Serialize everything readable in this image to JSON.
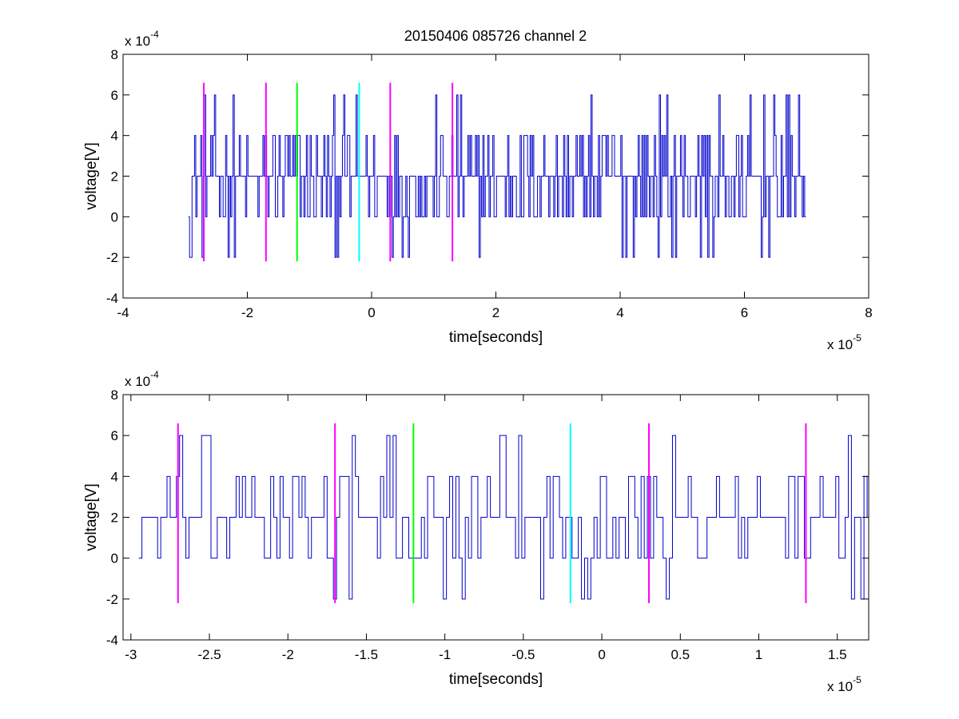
{
  "title": "20150406 085726 channel 2",
  "colors": {
    "signal": "#0000cc",
    "marker_magenta": "#ff00ff",
    "marker_green": "#00ff00",
    "marker_cyan": "#00ffff",
    "axes": "#000000",
    "background": "#ffffff"
  },
  "chart_data": [
    {
      "type": "line",
      "xlabel": "time[seconds]",
      "ylabel": "voltage[V]",
      "x_exponent_base": "x 10",
      "x_exponent": "-5",
      "y_exponent_base": "x 10",
      "y_exponent": "-4",
      "xlim": [
        -4,
        8
      ],
      "ylim": [
        -4,
        8
      ],
      "x_unit_scale": 1e-05,
      "y_unit_scale": 0.0001,
      "xticks": [
        -4,
        -2,
        0,
        2,
        4,
        6,
        8
      ],
      "xtick_labels": [
        "-4",
        "-2",
        "0",
        "2",
        "4",
        "6",
        "8"
      ],
      "yticks": [
        -4,
        -2,
        0,
        2,
        4,
        6,
        8
      ],
      "ytick_labels": [
        "-4",
        "-2",
        "0",
        "2",
        "4",
        "6",
        "8"
      ],
      "grid": false,
      "signal": {
        "x_start": -2.95,
        "x_end": 7.0,
        "dt": 0.02,
        "baseline": 2,
        "levels": [
          -2,
          0,
          2,
          4,
          6
        ]
      },
      "markers": [
        {
          "x": -2.7,
          "color": "magenta",
          "y_range": [
            -2.2,
            6.6
          ]
        },
        {
          "x": -1.7,
          "color": "magenta",
          "y_range": [
            -2.2,
            6.6
          ]
        },
        {
          "x": -1.2,
          "color": "green",
          "y_range": [
            -2.2,
            6.6
          ]
        },
        {
          "x": -0.2,
          "color": "cyan",
          "y_range": [
            -2.2,
            6.6
          ]
        },
        {
          "x": 0.3,
          "color": "magenta",
          "y_range": [
            -2.2,
            6.6
          ]
        },
        {
          "x": 1.3,
          "color": "magenta",
          "y_range": [
            -2.2,
            6.6
          ]
        }
      ]
    },
    {
      "type": "line",
      "xlabel": "time[seconds]",
      "ylabel": "voltage[V]",
      "x_exponent_base": "x 10",
      "x_exponent": "-5",
      "y_exponent_base": "x 10",
      "y_exponent": "-4",
      "xlim": [
        -3.05,
        1.7
      ],
      "ylim": [
        -4,
        8
      ],
      "x_unit_scale": 1e-05,
      "y_unit_scale": 0.0001,
      "xticks": [
        -3,
        -2.5,
        -2,
        -1.5,
        -1,
        -0.5,
        0,
        0.5,
        1,
        1.5
      ],
      "xtick_labels": [
        "-3",
        "-2.5",
        "-2",
        "-1.5",
        "-1",
        "-0.5",
        "0",
        "0.5",
        "1",
        "1.5"
      ],
      "yticks": [
        -4,
        -2,
        0,
        2,
        4,
        6,
        8
      ],
      "ytick_labels": [
        "-4",
        "-2",
        "0",
        "2",
        "4",
        "6",
        "8"
      ],
      "grid": false,
      "signal": {
        "x_start": -2.95,
        "x_end": 1.7,
        "dt": 0.02,
        "baseline": 2,
        "levels": [
          -2,
          0,
          2,
          4,
          6
        ]
      },
      "markers": [
        {
          "x": -2.7,
          "color": "magenta",
          "y_range": [
            -2.2,
            6.6
          ]
        },
        {
          "x": -1.7,
          "color": "magenta",
          "y_range": [
            -2.2,
            6.6
          ]
        },
        {
          "x": -1.2,
          "color": "green",
          "y_range": [
            -2.2,
            6.6
          ]
        },
        {
          "x": -0.2,
          "color": "cyan",
          "y_range": [
            -2.2,
            6.6
          ]
        },
        {
          "x": 0.3,
          "color": "magenta",
          "y_range": [
            -2.2,
            6.6
          ]
        },
        {
          "x": 1.3,
          "color": "magenta",
          "y_range": [
            -2.2,
            6.6
          ]
        }
      ]
    }
  ]
}
